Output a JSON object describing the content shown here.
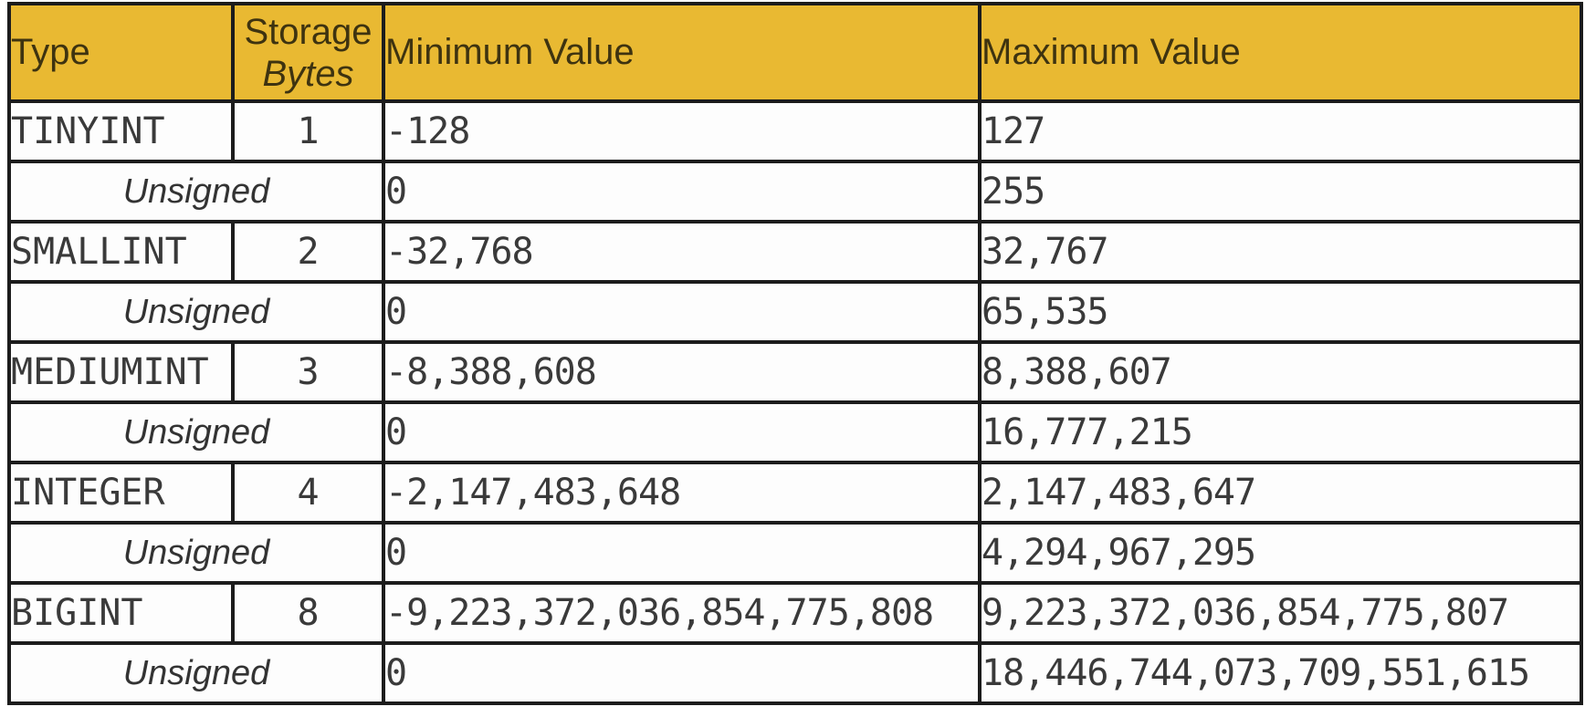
{
  "colors": {
    "header_bg": "#e9b932",
    "header_text": "#3e3310",
    "border": "#1c1c1c",
    "body_text": "#3a3a3a",
    "row_bg": "#fdfdfd"
  },
  "table": {
    "header": {
      "type": "Type",
      "storage_line1": "Storage",
      "storage_line2": "Bytes",
      "min": "Minimum Value",
      "max": "Maximum Value"
    },
    "rows": [
      {
        "kind": "type",
        "type": "TINYINT",
        "bytes": "1",
        "min": "-128",
        "max": "127"
      },
      {
        "kind": "unsigned",
        "label": "Unsigned",
        "min": "0",
        "max": "255"
      },
      {
        "kind": "type",
        "type": "SMALLINT",
        "bytes": "2",
        "min": "-32,768",
        "max": "32,767"
      },
      {
        "kind": "unsigned",
        "label": "Unsigned",
        "min": "0",
        "max": "65,535"
      },
      {
        "kind": "type",
        "type": "MEDIUMINT",
        "bytes": "3",
        "min": "-8,388,608",
        "max": "8,388,607"
      },
      {
        "kind": "unsigned",
        "label": "Unsigned",
        "min": "0",
        "max": "16,777,215"
      },
      {
        "kind": "type",
        "type": "INTEGER",
        "bytes": "4",
        "min": "-2,147,483,648",
        "max": "2,147,483,647"
      },
      {
        "kind": "unsigned",
        "label": "Unsigned",
        "min": "0",
        "max": "4,294,967,295"
      },
      {
        "kind": "type",
        "type": "BIGINT",
        "bytes": "8",
        "min": "-9,223,372,036,854,775,808",
        "max": "9,223,372,036,854,775,807"
      },
      {
        "kind": "unsigned",
        "label": "Unsigned",
        "min": "0",
        "max": "18,446,744,073,709,551,615"
      }
    ]
  }
}
